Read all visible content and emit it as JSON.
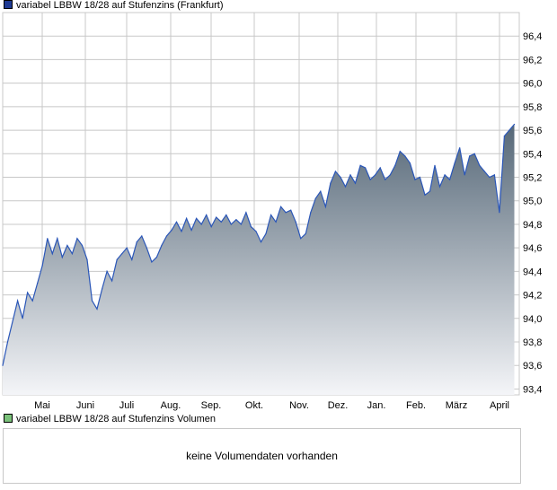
{
  "legends": {
    "price": {
      "label": "variabel LBBW 18/28 auf Stufenzins (Frankfurt)",
      "color": "#1f3a93"
    },
    "volume": {
      "label": "variabel LBBW 18/28 auf Stufenzins Volumen",
      "color": "#7ac17a"
    }
  },
  "volume_panel": {
    "message": "keine Volumendaten vorhanden"
  },
  "colors": {
    "line": "#2a56b8",
    "fill_top": "#566878",
    "fill_bottom": "#f4f5f8",
    "grid": "#c8c8c8"
  },
  "chart_data": {
    "type": "area",
    "title": "variabel LBBW 18/28 auf Stufenzins (Frankfurt)",
    "xlabel": "",
    "ylabel": "",
    "ylim": [
      93.35,
      96.6
    ],
    "y_ticks": [
      "93,4",
      "93,6",
      "93,8",
      "94,0",
      "94,2",
      "94,4",
      "94,6",
      "94,8",
      "95,0",
      "95,2",
      "95,4",
      "95,6",
      "95,8",
      "96,0",
      "96,2",
      "96,4"
    ],
    "x_ticks": [
      "Mai",
      "Juni",
      "Juli",
      "Aug.",
      "Sep.",
      "Okt.",
      "Nov.",
      "Dez.",
      "Jan.",
      "Feb.",
      "März",
      "April"
    ],
    "grid": true,
    "series": [
      {
        "name": "variabel LBBW 18/28 auf Stufenzins (Frankfurt)",
        "x": [
          0,
          0.5,
          1.5,
          2,
          2.5,
          3,
          3.5,
          4,
          4.5,
          5,
          5.5,
          6,
          6.5,
          7,
          7.5,
          8,
          8.5,
          9,
          9.5,
          10,
          10.5,
          11,
          11.5,
          12,
          12.5,
          13,
          13.5,
          14,
          14.5,
          15,
          15.5,
          16,
          16.5,
          17,
          17.5,
          18,
          18.5,
          19,
          19.5,
          20,
          20.5,
          21,
          21.5,
          22,
          22.5,
          23,
          23.5,
          24,
          24.5,
          25,
          25.5,
          26,
          26.5,
          27,
          27.5,
          28,
          28.5,
          29,
          29.5,
          30,
          30.5,
          31,
          31.5,
          32,
          32.5,
          33,
          33.5,
          34,
          34.5,
          35,
          35.5,
          36,
          36.5,
          37,
          37.5,
          38,
          38.5,
          39,
          39.5,
          40,
          40.5,
          41,
          41.5,
          42,
          42.5,
          43,
          43.5,
          44,
          44.5,
          45,
          45.5,
          46,
          46.5,
          47,
          47.5,
          48,
          48.5,
          49,
          49.5,
          50,
          50.5,
          51,
          51.5
        ],
        "values": [
          93.6,
          93.8,
          94.15,
          94.0,
          94.22,
          94.15,
          94.3,
          94.45,
          94.68,
          94.55,
          94.68,
          94.52,
          94.62,
          94.55,
          94.68,
          94.62,
          94.5,
          94.15,
          94.08,
          94.25,
          94.4,
          94.32,
          94.5,
          94.55,
          94.6,
          94.5,
          94.65,
          94.7,
          94.6,
          94.48,
          94.52,
          94.62,
          94.7,
          94.75,
          94.82,
          94.74,
          94.85,
          94.75,
          94.85,
          94.8,
          94.88,
          94.78,
          94.86,
          94.82,
          94.88,
          94.8,
          94.84,
          94.8,
          94.9,
          94.78,
          94.74,
          94.65,
          94.72,
          94.88,
          94.82,
          94.95,
          94.9,
          94.92,
          94.82,
          94.68,
          94.72,
          94.9,
          95.02,
          95.08,
          94.95,
          95.15,
          95.25,
          95.2,
          95.12,
          95.22,
          95.15,
          95.3,
          95.28,
          95.18,
          95.22,
          95.28,
          95.18,
          95.22,
          95.3,
          95.42,
          95.38,
          95.32,
          95.18,
          95.2,
          95.05,
          95.08,
          95.3,
          95.12,
          95.22,
          95.18,
          95.32,
          95.45,
          95.22,
          95.38,
          95.4,
          95.3,
          95.25,
          95.2,
          95.22,
          94.9,
          95.55,
          95.6,
          95.65
        ]
      }
    ]
  }
}
